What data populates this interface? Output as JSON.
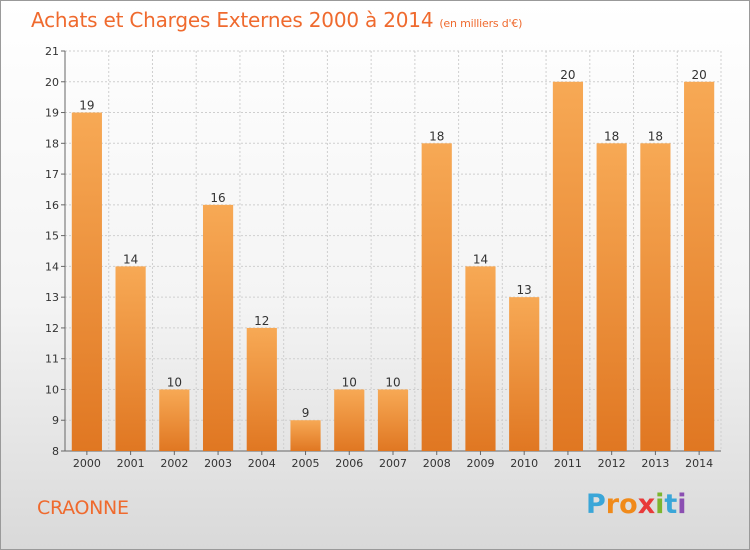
{
  "title": "Achats et Charges Externes 2000 à 2014",
  "subtitle": "(en milliers d'€)",
  "commune": "CRAONNE",
  "brand": {
    "letters": [
      "P",
      "r",
      "o",
      "x",
      "i",
      "t",
      "i"
    ],
    "colors": [
      "#3aa6d8",
      "#f08a1a",
      "#f08a1a",
      "#e83a3a",
      "#7cb52f",
      "#3aa6d8",
      "#8b4fb2"
    ]
  },
  "chart_data": {
    "type": "bar",
    "categories": [
      "2000",
      "2001",
      "2002",
      "2003",
      "2004",
      "2005",
      "2006",
      "2007",
      "2008",
      "2009",
      "2010",
      "2011",
      "2012",
      "2013",
      "2014"
    ],
    "values": [
      19,
      14,
      10,
      16,
      12,
      9,
      10,
      10,
      18,
      14,
      13,
      20,
      18,
      18,
      20
    ],
    "data_labels": [
      "19",
      "14",
      "10",
      "16",
      "12",
      "9",
      "10",
      "10",
      "18",
      "14",
      "13",
      "20",
      "18",
      "18",
      "20"
    ],
    "yticks": [
      8,
      9,
      10,
      11,
      12,
      13,
      14,
      15,
      16,
      17,
      18,
      19,
      20,
      21
    ],
    "ylim": [
      8,
      21
    ],
    "grid": true,
    "colors": {
      "bar_light": "#f7a955",
      "bar_dark": "#e07722",
      "grid": "#cfcfcf"
    }
  }
}
